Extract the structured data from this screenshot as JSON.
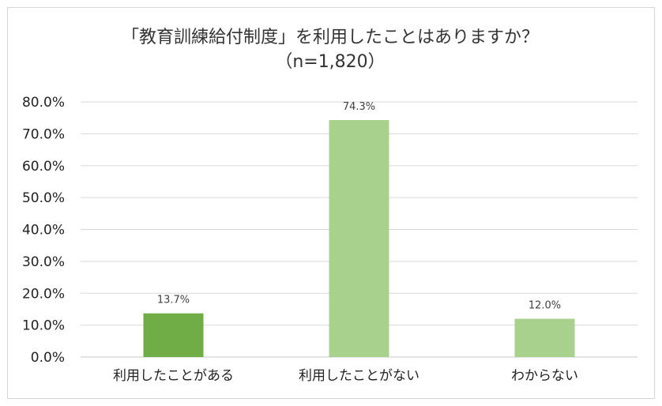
{
  "chart_data": {
    "type": "bar",
    "title_line1": "「教育訓練給付制度」を利用したことはありますか？",
    "title_line2": "（n=1,820）",
    "categories": [
      "利用したことがある",
      "利用したことがない",
      "わからない"
    ],
    "values": [
      13.7,
      74.3,
      12.0
    ],
    "data_labels": [
      "13.7%",
      "74.3%",
      "12.0%"
    ],
    "bar_colors": [
      "#70ad47",
      "#a9d18e",
      "#a9d18e"
    ],
    "ylim": [
      0,
      80
    ],
    "y_ticks": [
      0,
      10,
      20,
      30,
      40,
      50,
      60,
      70,
      80
    ],
    "y_tick_labels": [
      "0.0%",
      "10.0%",
      "20.0%",
      "30.0%",
      "40.0%",
      "50.0%",
      "60.0%",
      "70.0%",
      "80.0%"
    ],
    "grid": true,
    "legend": "none"
  }
}
